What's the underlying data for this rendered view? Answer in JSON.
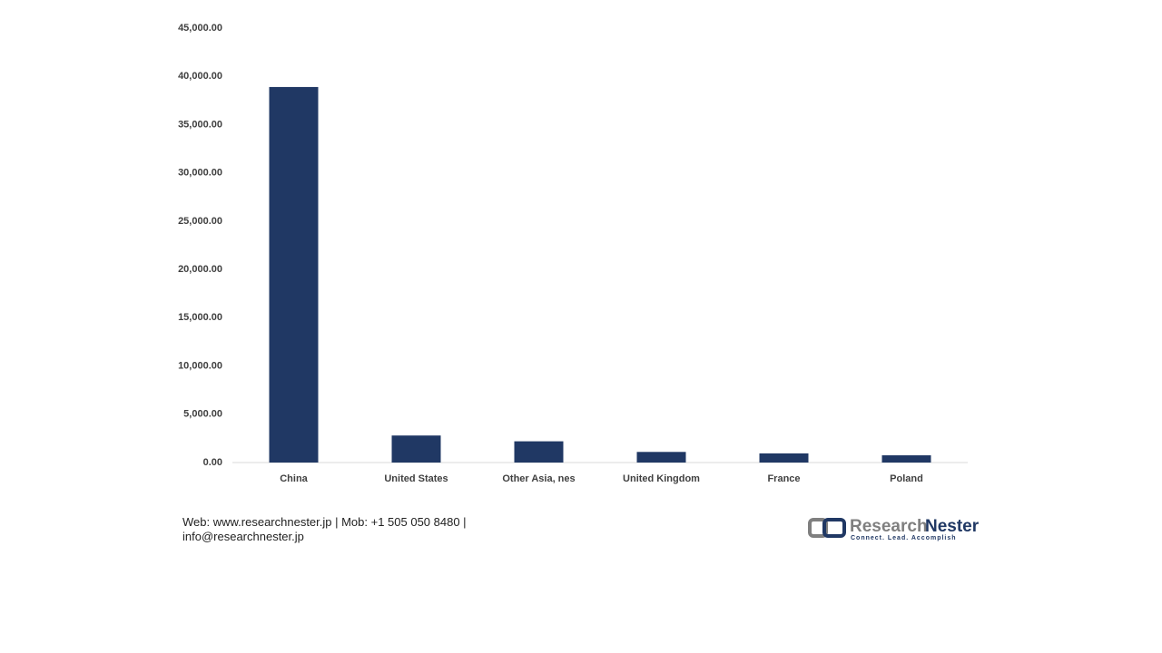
{
  "chart_data": {
    "type": "bar",
    "categories": [
      "China",
      "United States",
      "Other Asia, nes",
      "United Kingdom",
      "France",
      "Poland"
    ],
    "values": [
      38900,
      2800,
      2200,
      1100,
      950,
      750
    ],
    "color": "#203864",
    "ylim": [
      0,
      45000
    ],
    "yticks": [
      {
        "value": 0,
        "label": "0.00"
      },
      {
        "value": 5000,
        "label": "5,000.00"
      },
      {
        "value": 10000,
        "label": "10,000.00"
      },
      {
        "value": 15000,
        "label": "15,000.00"
      },
      {
        "value": 20000,
        "label": "20,000.00"
      },
      {
        "value": 25000,
        "label": "25,000.00"
      },
      {
        "value": 30000,
        "label": "30,000.00"
      },
      {
        "value": 35000,
        "label": "35,000.00"
      },
      {
        "value": 40000,
        "label": "40,000.00"
      },
      {
        "value": 45000,
        "label": "45,000.00"
      }
    ],
    "grid": false
  },
  "footer": {
    "line1": "Web: www.researchnester.jp | Mob: +1 505 050 8480 |",
    "line2": "info@researchnester.jp"
  },
  "logo": {
    "name_part1": "Research",
    "name_part2": "Nester",
    "tagline": "Connect. Lead. Accomplish"
  }
}
